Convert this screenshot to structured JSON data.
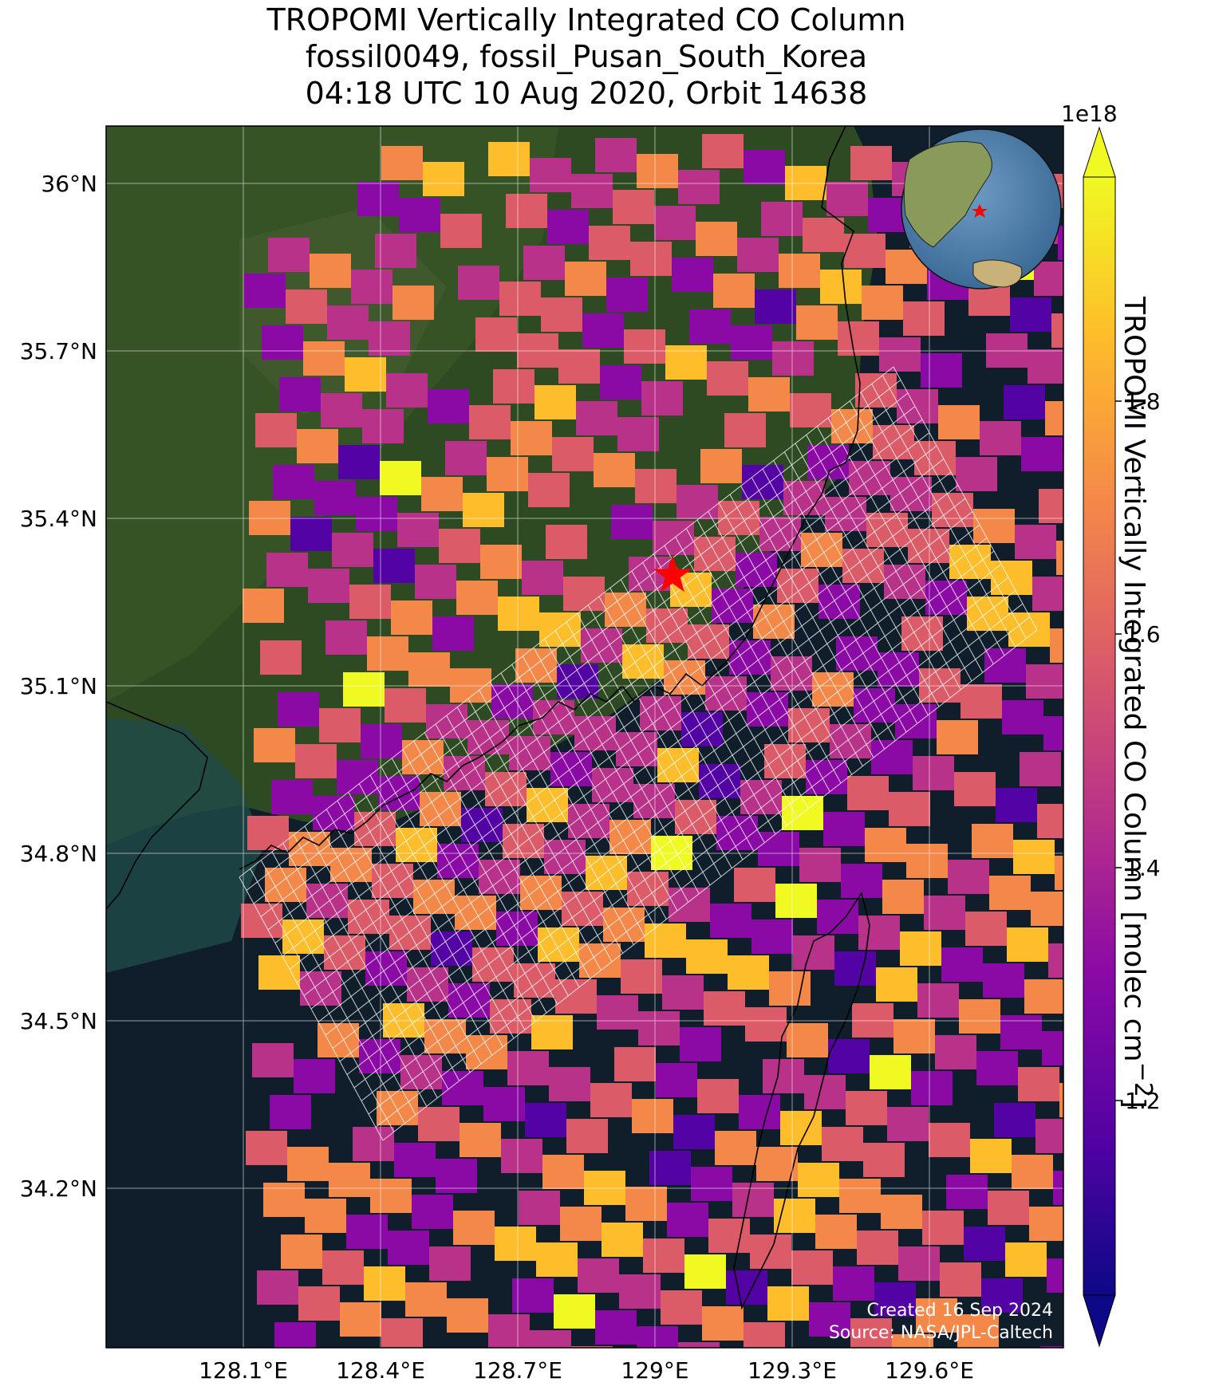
{
  "title": {
    "line1": "TROPOMI Vertically Integrated CO Column",
    "line2": "fossil0049, fossil_Pusan_South_Korea",
    "line3": "04:18 UTC 10 Aug 2020, Orbit 14638"
  },
  "map": {
    "lat_labels": [
      "36°N",
      "35.7°N",
      "35.4°N",
      "35.1°N",
      "34.8°N",
      "34.5°N",
      "34.2°N"
    ],
    "lon_labels": [
      "128.1°E",
      "128.4°E",
      "128.7°E",
      "129°E",
      "129.3°E",
      "129.6°E"
    ],
    "target_marker": "red-star",
    "inset": "globe-orthographic",
    "credit_line1": "Created 16 Sep 2024",
    "credit_line2": "Source: NASA/JPL-Caltech"
  },
  "colorbar": {
    "label": "TROPOMI Vertically Integrated CO Column [molec cm",
    "label_sup": "−2",
    "label_end": "]",
    "exponent": "1e18",
    "ticks": [
      "1.2",
      "1.4",
      "1.6",
      "1.8"
    ],
    "colormap": "plasma",
    "colors": [
      "#0d0887",
      "#5302a3",
      "#8b0aa5",
      "#b83289",
      "#db5c68",
      "#f48849",
      "#febd2a",
      "#f0f921"
    ]
  }
}
